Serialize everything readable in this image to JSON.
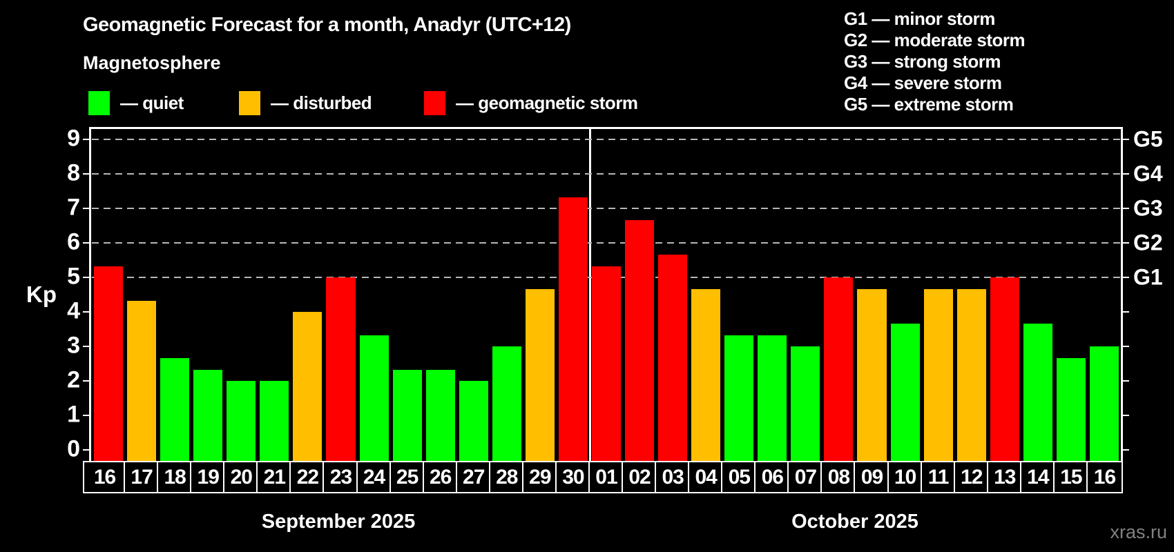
{
  "header": {
    "title": "Geomagnetic Forecast for a month, Anadyr (UTC+12)",
    "subtitle": "Magnetosphere"
  },
  "legend": {
    "items": [
      {
        "name": "quiet",
        "label": "— quiet",
        "color": "#00ff00"
      },
      {
        "name": "disturbed",
        "label": "— disturbed",
        "color": "#ffbf00"
      },
      {
        "name": "storm",
        "label": "— geomagnetic storm",
        "color": "#ff0000"
      }
    ]
  },
  "g_legend": {
    "items": [
      {
        "label": "G1 — minor storm"
      },
      {
        "label": "G2 — moderate storm"
      },
      {
        "label": "G3 — strong storm"
      },
      {
        "label": "G4 — severe storm"
      },
      {
        "label": "G5 — extreme storm"
      }
    ]
  },
  "chart_data": {
    "type": "bar",
    "title": "Geomagnetic Forecast for a month, Anadyr (UTC+12)",
    "xlabel": "",
    "ylabel": "Kp",
    "ylim": [
      0,
      9
    ],
    "yticks": [
      0,
      1,
      2,
      3,
      4,
      5,
      6,
      7,
      8,
      9
    ],
    "gridlines_at": [
      5,
      6,
      7,
      8,
      9
    ],
    "grid": true,
    "right_axis": [
      {
        "kp": 5,
        "label": "G1"
      },
      {
        "kp": 6,
        "label": "G2"
      },
      {
        "kp": 7,
        "label": "G3"
      },
      {
        "kp": 8,
        "label": "G4"
      },
      {
        "kp": 9,
        "label": "G5"
      }
    ],
    "months": [
      {
        "label": "September 2025",
        "days": [
          {
            "day": "16",
            "kp": 5.33,
            "level": "storm"
          },
          {
            "day": "17",
            "kp": 4.33,
            "level": "disturbed"
          },
          {
            "day": "18",
            "kp": 2.67,
            "level": "quiet"
          },
          {
            "day": "19",
            "kp": 2.33,
            "level": "quiet"
          },
          {
            "day": "20",
            "kp": 2.0,
            "level": "quiet"
          },
          {
            "day": "21",
            "kp": 2.0,
            "level": "quiet"
          },
          {
            "day": "22",
            "kp": 4.0,
            "level": "disturbed"
          },
          {
            "day": "23",
            "kp": 5.0,
            "level": "storm"
          },
          {
            "day": "24",
            "kp": 3.33,
            "level": "quiet"
          },
          {
            "day": "25",
            "kp": 2.33,
            "level": "quiet"
          },
          {
            "day": "26",
            "kp": 2.33,
            "level": "quiet"
          },
          {
            "day": "27",
            "kp": 2.0,
            "level": "quiet"
          },
          {
            "day": "28",
            "kp": 3.0,
            "level": "quiet"
          },
          {
            "day": "29",
            "kp": 4.67,
            "level": "disturbed"
          },
          {
            "day": "30",
            "kp": 7.33,
            "level": "storm"
          }
        ]
      },
      {
        "label": "October 2025",
        "days": [
          {
            "day": "01",
            "kp": 5.33,
            "level": "storm"
          },
          {
            "day": "02",
            "kp": 6.67,
            "level": "storm"
          },
          {
            "day": "03",
            "kp": 5.67,
            "level": "storm"
          },
          {
            "day": "04",
            "kp": 4.67,
            "level": "disturbed"
          },
          {
            "day": "05",
            "kp": 3.33,
            "level": "quiet"
          },
          {
            "day": "06",
            "kp": 3.33,
            "level": "quiet"
          },
          {
            "day": "07",
            "kp": 3.0,
            "level": "quiet"
          },
          {
            "day": "08",
            "kp": 5.0,
            "level": "storm"
          },
          {
            "day": "09",
            "kp": 4.67,
            "level": "disturbed"
          },
          {
            "day": "10",
            "kp": 3.67,
            "level": "quiet"
          },
          {
            "day": "11",
            "kp": 4.67,
            "level": "disturbed"
          },
          {
            "day": "12",
            "kp": 4.67,
            "level": "disturbed"
          },
          {
            "day": "13",
            "kp": 5.0,
            "level": "storm"
          },
          {
            "day": "14",
            "kp": 3.67,
            "level": "quiet"
          },
          {
            "day": "15",
            "kp": 2.67,
            "level": "quiet"
          },
          {
            "day": "16",
            "kp": 3.0,
            "level": "quiet"
          }
        ]
      }
    ]
  },
  "watermark": "xras.ru"
}
